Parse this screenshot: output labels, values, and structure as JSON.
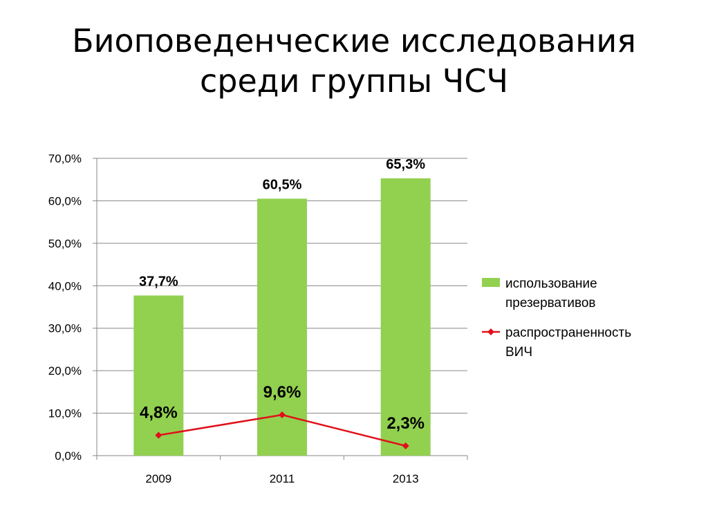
{
  "title_lines": [
    "Биоповеденческие исследования",
    "среди группы ЧСЧ"
  ],
  "chart_data": {
    "type": "bar",
    "categories": [
      "2009",
      "2011",
      "2013"
    ],
    "ylim": [
      0,
      70
    ],
    "yticks": [
      "0,0%",
      "10,0%",
      "20,0%",
      "30,0%",
      "40,0%",
      "50,0%",
      "60,0%",
      "70,0%"
    ],
    "grid": true,
    "legend_position": "right",
    "series": [
      {
        "name": "использование презервативов",
        "legend_lines": [
          "использование",
          "презервативов"
        ],
        "type": "bar",
        "color": "#92d050",
        "values": [
          37.7,
          60.5,
          65.3
        ],
        "labels": [
          "37,7%",
          "60,5%",
          "65,3%"
        ]
      },
      {
        "name": "распространенность ВИЧ",
        "legend_lines": [
          "распространенность",
          "ВИЧ"
        ],
        "type": "line",
        "color": "#e0101a",
        "values": [
          4.8,
          9.6,
          2.3
        ],
        "labels": [
          "4,8%",
          "9,6%",
          "2,3%"
        ]
      }
    ]
  }
}
